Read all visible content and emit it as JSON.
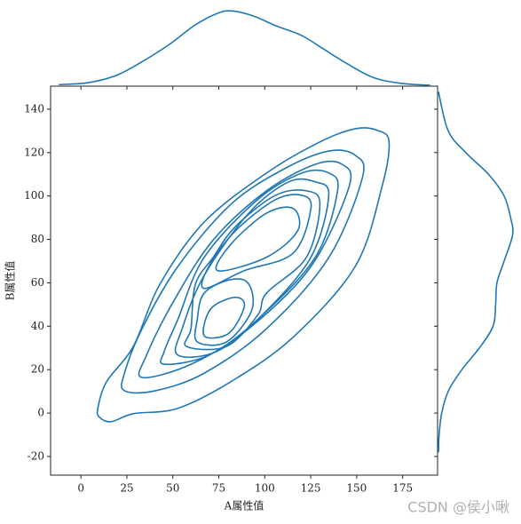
{
  "chart_data": {
    "type": "kde-joint",
    "x_label": "A属性值",
    "y_label": "B属性值",
    "watermark": "CSDN @侯小啾",
    "color": "#1f77b4",
    "xlim": [
      -16.5,
      194
    ],
    "ylim": [
      -28.6,
      150.6
    ],
    "xticks": [
      0,
      25,
      50,
      75,
      100,
      125,
      150,
      175
    ],
    "yticks": [
      -20,
      0,
      20,
      40,
      60,
      80,
      100,
      120,
      140
    ],
    "contours": [
      {
        "x": [
          10.1,
          16.4,
          28.5,
          52.7,
          81.6,
          115.5,
          149.3,
          163.8,
          167.6,
          161.4,
          149.3,
          130,
          101,
          67.1,
          43,
          28.5,
          14,
          9.2
        ],
        "y": [
          -1.9,
          -4,
          -0.3,
          2.2,
          14.5,
          35,
          67.7,
          104.4,
          124.9,
          130.2,
          131,
          124.9,
          110.6,
          88,
          59.4,
          30.7,
          14.5,
          2.2
        ]
      },
      {
        "x": [
          23.7,
          40.6,
          67.1,
          101,
          134.8,
          153.1,
          149.3,
          134.8,
          110.6,
          81.6,
          52.7,
          33.3,
          23.7
        ],
        "y": [
          10.3,
          10.3,
          18.4,
          38.9,
          71.6,
          108.4,
          118.7,
          120.7,
          112.5,
          96.2,
          67.5,
          38.9,
          18.4
        ]
      },
      {
        "x": [
          33.3,
          59.9,
          91.3,
          125.1,
          145.9,
          142,
          127.5,
          101,
          72,
          50.2,
          35.7
        ],
        "y": [
          16.4,
          22.5,
          38.9,
          67.5,
          104.4,
          114.6,
          114.6,
          102.4,
          79.8,
          51.2,
          26.7
        ]
      },
      {
        "x": [
          45.4,
          69.6,
          96.1,
          127.5,
          139.6,
          134.8,
          120.3,
          96.1,
          67.1,
          52.7,
          45.4
        ],
        "y": [
          22.5,
          26.7,
          43.1,
          71.8,
          102.4,
          110.6,
          110.6,
          98.3,
          71.8,
          43.1,
          28.6
        ]
      },
      {
        "x": [
          52.7,
          74.4,
          98.6,
          125.1,
          134.8,
          127.5,
          113,
          91.3,
          67.1,
          55.1
        ],
        "y": [
          26.7,
          28.6,
          45.1,
          71.8,
          100.3,
          106.5,
          106.5,
          92.1,
          63.5,
          39
        ]
      },
      {
        "x": [
          57.5,
          79.2,
          96.1,
          101,
          122.7,
          130,
          122.7,
          105.8,
          84.1,
          72,
          62.3,
          59.9
        ],
        "y": [
          30.7,
          30.7,
          45.1,
          55.3,
          71.8,
          96.3,
          102.4,
          100.3,
          86,
          71.8,
          59.4,
          39
        ]
      },
      {
        "x": [
          63.3,
          79.2,
          92.8,
          91.3,
          81.6,
          67.1,
          63.3
        ],
        "y": [
          32.8,
          32.8,
          47.1,
          59.4,
          61.5,
          55.3,
          43.1
        ]
      },
      {
        "x": [
          67.1,
          88.9,
          115.5,
          125.1,
          120.3,
          105.8,
          84.1,
          69.6
        ],
        "y": [
          57.4,
          65.6,
          73.7,
          94.2,
          100.3,
          98.3,
          84,
          67.6
        ]
      },
      {
        "x": [
          68.1,
          80.7,
          88.9,
          84.1,
          72,
          67.1
        ],
        "y": [
          34.9,
          36.9,
          49.2,
          53.3,
          49.2,
          41
        ]
      },
      {
        "x": [
          74.4,
          101,
          117.9,
          115.5,
          101,
          81.6
        ],
        "y": [
          65.6,
          71.8,
          84,
          94.2,
          92.1,
          77.8
        ]
      }
    ],
    "marginal_x": {
      "x": [
        -12,
        4,
        19,
        33,
        48,
        62,
        74,
        82,
        94,
        106,
        120,
        132,
        145,
        159,
        174,
        190
      ],
      "density": [
        0.0001,
        0.0004,
        0.0015,
        0.0036,
        0.0063,
        0.0093,
        0.0111,
        0.0115,
        0.0107,
        0.0092,
        0.0077,
        0.0056,
        0.0033,
        0.0012,
        0.0003,
        0
      ],
      "lim": [
        0,
        0.0125
      ]
    },
    "marginal_y": {
      "y": [
        148,
        130,
        120,
        110,
        100,
        90,
        82,
        70,
        60,
        50,
        40,
        30,
        20,
        10,
        0,
        -10,
        -18
      ],
      "density": [
        0,
        0.0015,
        0.0042,
        0.0077,
        0.0101,
        0.0111,
        0.0114,
        0.0101,
        0.009,
        0.0088,
        0.0084,
        0.0063,
        0.0036,
        0.0015,
        0.0005,
        0.0001,
        0
      ],
      "lim": [
        0,
        0.0127
      ]
    }
  }
}
